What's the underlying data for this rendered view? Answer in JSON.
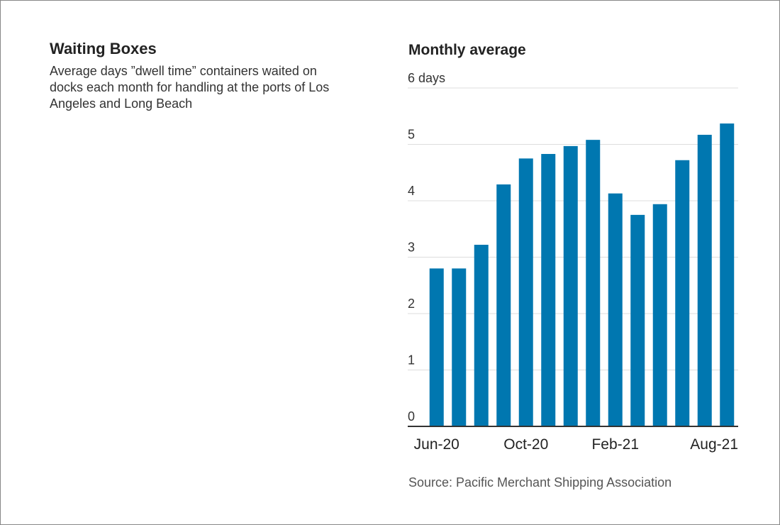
{
  "chart_data": {
    "type": "bar",
    "title": "Waiting Boxes",
    "subtitle": "Average days ”dwell time” containers waited on docks each month for handling at the ports of Los Angeles and Long Beach",
    "chart_title": "Monthly average",
    "source": "Source: Pacific Merchant Shipping Association",
    "categories": [
      "Jun-20",
      null,
      null,
      null,
      "Oct-20",
      null,
      null,
      null,
      "Feb-21",
      null,
      null,
      null,
      null,
      "Aug-21"
    ],
    "values": [
      2.8,
      2.8,
      3.22,
      4.29,
      4.75,
      4.83,
      4.97,
      5.08,
      4.13,
      3.75,
      3.94,
      4.72,
      5.17,
      5.37
    ],
    "color": "#0077b0",
    "ylim": [
      0,
      6
    ],
    "yticks": [
      0,
      1,
      2,
      3,
      4,
      5,
      {
        "value": 6,
        "label": "6 days"
      }
    ],
    "grid": true
  }
}
